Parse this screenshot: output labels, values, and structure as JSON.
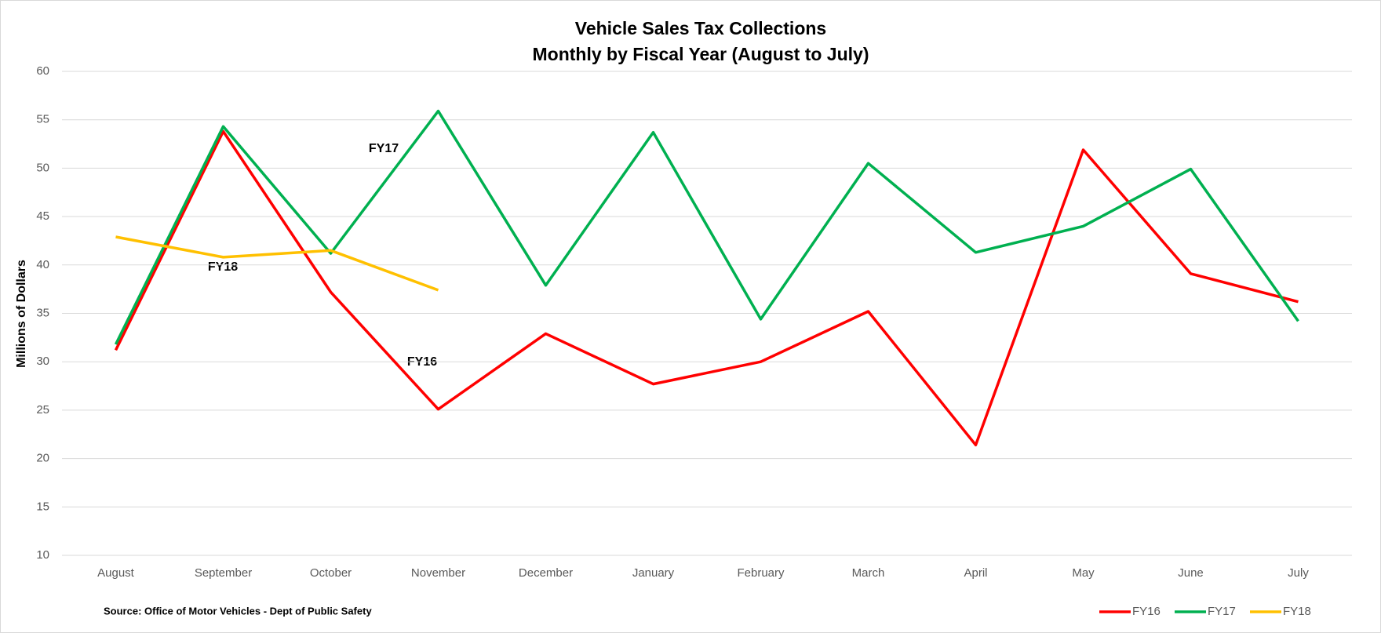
{
  "chart_data": {
    "type": "line",
    "title": "Vehicle Sales Tax Collections",
    "subtitle": "Monthly by Fiscal Year (August to July)",
    "y_axis_label": "Millions of Dollars",
    "source": "Source: Office of Motor Vehicles - Dept of Public Safety",
    "annotations": [
      "FY17",
      "FY18",
      "FY16"
    ],
    "categories": [
      "August",
      "September",
      "October",
      "November",
      "December",
      "January",
      "February",
      "March",
      "April",
      "May",
      "June",
      "July"
    ],
    "series": [
      {
        "name": "FY16",
        "color": "#ff0000",
        "values": [
          31.2,
          53.8,
          37.2,
          25.1,
          32.9,
          27.7,
          30.0,
          35.2,
          21.4,
          51.9,
          39.1,
          36.2
        ]
      },
      {
        "name": "FY17",
        "color": "#00b050",
        "values": [
          31.8,
          54.3,
          41.2,
          55.9,
          37.9,
          53.7,
          34.4,
          50.5,
          41.3,
          44.0,
          49.9,
          34.2
        ]
      },
      {
        "name": "FY18",
        "color": "#ffc000",
        "values": [
          42.9,
          40.8,
          41.5,
          37.4,
          null,
          null,
          null,
          null,
          null,
          null,
          null,
          null
        ]
      }
    ],
    "ylim": [
      10,
      60
    ],
    "yticks": [
      10,
      15,
      20,
      25,
      30,
      35,
      40,
      45,
      50,
      55,
      60
    ],
    "grid": true,
    "legend": "bottom-right"
  }
}
